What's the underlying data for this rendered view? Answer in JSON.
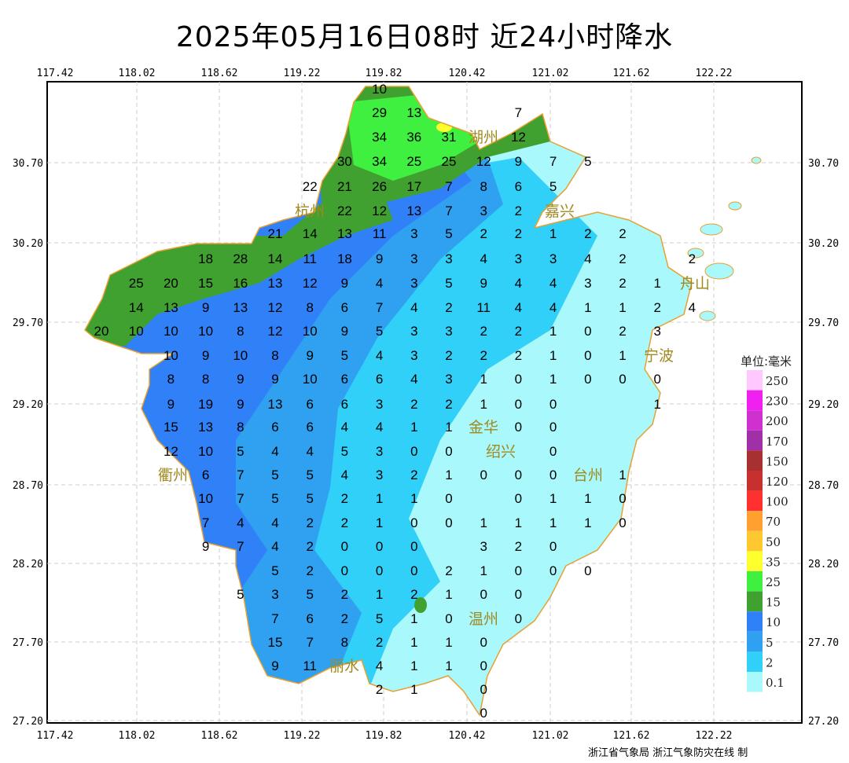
{
  "title": "2025年05月16日08时  近24小时降水",
  "footer": "浙江省气象局  浙江气象防灾在线 制",
  "lon_ticks": [
    "117.42",
    "118.02",
    "118.62",
    "119.22",
    "119.82",
    "120.42",
    "121.02",
    "121.62",
    "122.22"
  ],
  "lat_ticks": [
    "30.70",
    "30.20",
    "29.70",
    "29.20",
    "28.70",
    "28.20",
    "27.70",
    "27.20"
  ],
  "legend": {
    "unit": "单位:毫米",
    "items": [
      {
        "label": "250",
        "color": "#ffc8ff"
      },
      {
        "label": "230",
        "color": "#f020f0"
      },
      {
        "label": "200",
        "color": "#d030d0"
      },
      {
        "label": "170",
        "color": "#a030a8"
      },
      {
        "label": "150",
        "color": "#a83030"
      },
      {
        "label": "120",
        "color": "#c83030"
      },
      {
        "label": "100",
        "color": "#ff3030"
      },
      {
        "label": "70",
        "color": "#ffa030"
      },
      {
        "label": "50",
        "color": "#ffc830"
      },
      {
        "label": "35",
        "color": "#ffff30"
      },
      {
        "label": "25",
        "color": "#40f040"
      },
      {
        "label": "15",
        "color": "#40a030"
      },
      {
        "label": "10",
        "color": "#3080f8"
      },
      {
        "label": "5",
        "color": "#30a0f0"
      },
      {
        "label": "2",
        "color": "#30d0f8"
      },
      {
        "label": "0.1",
        "color": "#a8f8fc"
      }
    ]
  },
  "cities": [
    "湖州",
    "嘉兴",
    "杭州",
    "绍兴",
    "宁波",
    "舟山",
    "金华",
    "衢州",
    "台州",
    "丽水",
    "温州"
  ],
  "stations": [
    [
      "",
      "",
      "",
      "",
      "",
      "",
      "",
      "",
      "10"
    ],
    [
      "",
      "",
      "",
      "",
      "",
      "",
      "",
      "",
      "29",
      "13",
      "",
      "",
      "7"
    ],
    [
      "",
      "",
      "",
      "",
      "",
      "",
      "",
      "",
      "34",
      "36",
      "31",
      "",
      "12"
    ],
    [
      "",
      "",
      "",
      "",
      "",
      "",
      "",
      "30",
      "34",
      "25",
      "25",
      "12",
      "9",
      "7",
      "5"
    ],
    [
      "",
      "",
      "",
      "",
      "",
      "",
      "22",
      "21",
      "26",
      "17",
      "7",
      "8",
      "6",
      "5"
    ],
    [
      "",
      "",
      "",
      "",
      "",
      "",
      "",
      "22",
      "12",
      "13",
      "7",
      "3",
      "2"
    ],
    [
      "",
      "",
      "",
      "",
      "",
      "21",
      "14",
      "13",
      "11",
      "3",
      "5",
      "2",
      "2",
      "1",
      "2",
      "2"
    ],
    [
      "",
      "",
      "",
      "18",
      "28",
      "14",
      "11",
      "18",
      "9",
      "3",
      "3",
      "4",
      "3",
      "3",
      "4",
      "2",
      "",
      "2"
    ],
    [
      "",
      "25",
      "20",
      "15",
      "16",
      "13",
      "12",
      "9",
      "4",
      "3",
      "5",
      "9",
      "4",
      "4",
      "3",
      "2",
      "1"
    ],
    [
      "",
      "14",
      "13",
      "9",
      "13",
      "12",
      "8",
      "6",
      "7",
      "4",
      "2",
      "11",
      "4",
      "4",
      "1",
      "1",
      "2",
      "4"
    ],
    [
      "20",
      "10",
      "10",
      "10",
      "8",
      "12",
      "10",
      "9",
      "5",
      "3",
      "3",
      "2",
      "2",
      "1",
      "0",
      "2",
      "3"
    ],
    [
      "",
      "",
      "10",
      "9",
      "10",
      "8",
      "9",
      "5",
      "4",
      "3",
      "2",
      "2",
      "2",
      "1",
      "0",
      "1"
    ],
    [
      "",
      "",
      "8",
      "8",
      "9",
      "9",
      "10",
      "6",
      "6",
      "4",
      "3",
      "1",
      "0",
      "1",
      "0",
      "0",
      "0"
    ],
    [
      "",
      "",
      "9",
      "19",
      "9",
      "13",
      "6",
      "6",
      "3",
      "2",
      "2",
      "1",
      "0",
      "0",
      "",
      "",
      "1"
    ],
    [
      "",
      "",
      "15",
      "13",
      "8",
      "6",
      "6",
      "4",
      "4",
      "1",
      "1",
      "",
      "0",
      "0"
    ],
    [
      "",
      "",
      "12",
      "10",
      "5",
      "4",
      "4",
      "5",
      "3",
      "0",
      "0",
      "",
      "",
      "0"
    ],
    [
      "",
      "",
      "",
      "6",
      "7",
      "5",
      "5",
      "4",
      "3",
      "2",
      "1",
      "0",
      "0",
      "0",
      "",
      "1"
    ],
    [
      "",
      "",
      "",
      "10",
      "7",
      "5",
      "5",
      "2",
      "1",
      "1",
      "0",
      "",
      "0",
      "1",
      "1",
      "0"
    ],
    [
      "",
      "",
      "",
      "7",
      "4",
      "4",
      "2",
      "2",
      "1",
      "0",
      "0",
      "1",
      "1",
      "1",
      "1",
      "0"
    ],
    [
      "",
      "",
      "",
      "9",
      "7",
      "4",
      "2",
      "0",
      "0",
      "0",
      "",
      "3",
      "2",
      "0"
    ],
    [
      "",
      "",
      "",
      "",
      "",
      "5",
      "2",
      "0",
      "0",
      "0",
      "2",
      "1",
      "0",
      "0",
      "0"
    ],
    [
      "",
      "",
      "",
      "",
      "5",
      "3",
      "5",
      "2",
      "1",
      "2",
      "1",
      "0",
      "0"
    ],
    [
      "",
      "",
      "",
      "",
      "",
      "7",
      "6",
      "2",
      "5",
      "1",
      "0",
      "",
      "0"
    ],
    [
      "",
      "",
      "",
      "",
      "",
      "15",
      "7",
      "8",
      "2",
      "1",
      "1",
      "0"
    ],
    [
      "",
      "",
      "",
      "",
      "",
      "9",
      "11",
      "",
      "4",
      "1",
      "1",
      "0"
    ],
    [
      "",
      "",
      "",
      "",
      "",
      "",
      "",
      "",
      "2",
      "1",
      "",
      "0"
    ],
    [
      "",
      "",
      "",
      "",
      "",
      "",
      "",
      "",
      "",
      "",
      "",
      "0"
    ]
  ]
}
